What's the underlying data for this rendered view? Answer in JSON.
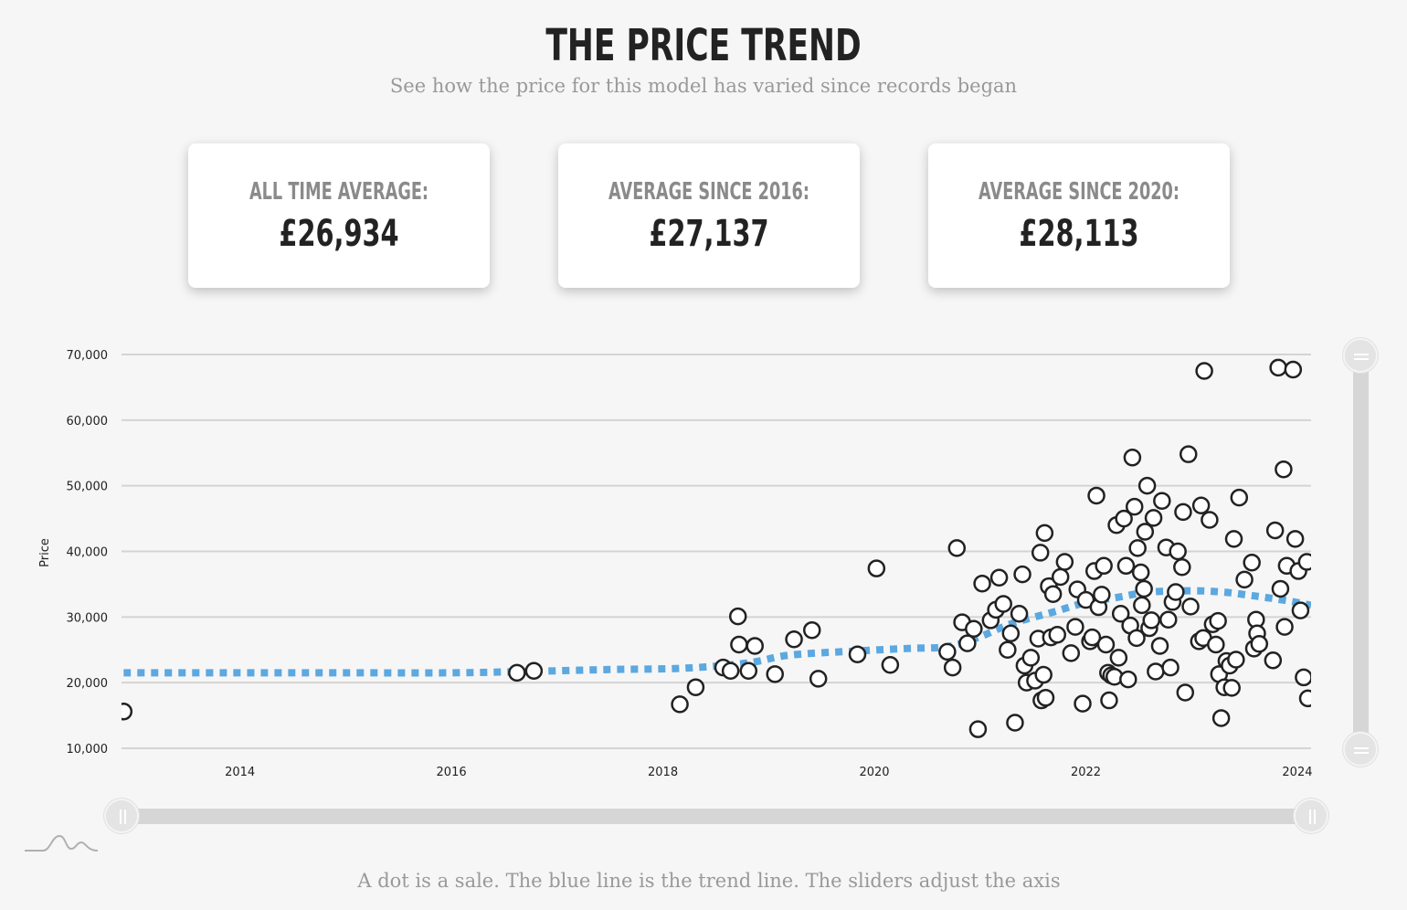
{
  "header": {
    "title": "THE PRICE TREND",
    "subtitle": "See how the price for this model has varied since records began"
  },
  "stats": [
    {
      "label": "ALL TIME AVERAGE:",
      "value": "£26,934"
    },
    {
      "label": "AVERAGE SINCE 2016:",
      "value": "£27,137"
    },
    {
      "label": "AVERAGE SINCE 2020:",
      "value": "£28,113"
    }
  ],
  "caption": "A dot is a sale. The blue line is the trend line. The sliders adjust the axis",
  "colors": {
    "trend": "#5ca8e0",
    "dot_stroke": "#222222",
    "grid": "#d4d4d4"
  },
  "logo_icon": "mountain-logo-icon",
  "chart_data": {
    "type": "scatter",
    "ylabel": "Price",
    "xlabel": "",
    "x_ticks": [
      "2014",
      "2016",
      "2018",
      "2020",
      "2022",
      "2024"
    ],
    "y_ticks": [
      "10,000",
      "20,000",
      "30,000",
      "40,000",
      "50,000",
      "60,000",
      "70,000"
    ],
    "xlim": [
      2012.88,
      2024.13
    ],
    "ylim": [
      10000,
      70000
    ],
    "grid": true,
    "trend": {
      "x": [
        2012.9,
        2014,
        2015,
        2016,
        2016.7,
        2017.5,
        2018.2,
        2018.8,
        2019.2,
        2019.8,
        2020.3,
        2020.7,
        2021.0,
        2021.3,
        2021.7,
        2022.0,
        2022.3,
        2022.6,
        2023.0,
        2023.3,
        2023.6,
        2023.9,
        2024.13
      ],
      "y": [
        21500,
        21500,
        21500,
        21500,
        21700,
        22000,
        22200,
        23000,
        24200,
        24800,
        25200,
        25500,
        27000,
        29000,
        30800,
        32200,
        33000,
        33800,
        34000,
        33800,
        33200,
        32500,
        31800
      ]
    },
    "points": [
      {
        "x": 2012.9,
        "y": 15600
      },
      {
        "x": 2016.62,
        "y": 21500
      },
      {
        "x": 2016.78,
        "y": 21800
      },
      {
        "x": 2018.16,
        "y": 16700
      },
      {
        "x": 2018.31,
        "y": 19300
      },
      {
        "x": 2018.57,
        "y": 22300
      },
      {
        "x": 2018.64,
        "y": 21800
      },
      {
        "x": 2018.71,
        "y": 30100
      },
      {
        "x": 2018.72,
        "y": 25800
      },
      {
        "x": 2018.81,
        "y": 21800
      },
      {
        "x": 2018.87,
        "y": 25600
      },
      {
        "x": 2019.06,
        "y": 21300
      },
      {
        "x": 2019.24,
        "y": 26600
      },
      {
        "x": 2019.41,
        "y": 28000
      },
      {
        "x": 2019.47,
        "y": 20600
      },
      {
        "x": 2019.84,
        "y": 24300
      },
      {
        "x": 2020.02,
        "y": 37400
      },
      {
        "x": 2020.15,
        "y": 22700
      },
      {
        "x": 2020.69,
        "y": 24700
      },
      {
        "x": 2020.74,
        "y": 22300
      },
      {
        "x": 2020.78,
        "y": 40500
      },
      {
        "x": 2020.83,
        "y": 29200
      },
      {
        "x": 2020.88,
        "y": 26000
      },
      {
        "x": 2020.94,
        "y": 28200
      },
      {
        "x": 2020.98,
        "y": 12900
      },
      {
        "x": 2021.02,
        "y": 35100
      },
      {
        "x": 2021.1,
        "y": 29500
      },
      {
        "x": 2021.15,
        "y": 31100
      },
      {
        "x": 2021.18,
        "y": 36000
      },
      {
        "x": 2021.22,
        "y": 32000
      },
      {
        "x": 2021.26,
        "y": 25000
      },
      {
        "x": 2021.29,
        "y": 27500
      },
      {
        "x": 2021.33,
        "y": 13900
      },
      {
        "x": 2021.37,
        "y": 30500
      },
      {
        "x": 2021.4,
        "y": 36500
      },
      {
        "x": 2021.42,
        "y": 22600
      },
      {
        "x": 2021.44,
        "y": 20000
      },
      {
        "x": 2021.48,
        "y": 23800
      },
      {
        "x": 2021.52,
        "y": 20300
      },
      {
        "x": 2021.55,
        "y": 26700
      },
      {
        "x": 2021.57,
        "y": 39800
      },
      {
        "x": 2021.58,
        "y": 17300
      },
      {
        "x": 2021.6,
        "y": 21200
      },
      {
        "x": 2021.61,
        "y": 42800
      },
      {
        "x": 2021.62,
        "y": 17700
      },
      {
        "x": 2021.65,
        "y": 34700
      },
      {
        "x": 2021.67,
        "y": 26900
      },
      {
        "x": 2021.69,
        "y": 33500
      },
      {
        "x": 2021.73,
        "y": 27300
      },
      {
        "x": 2021.76,
        "y": 36100
      },
      {
        "x": 2021.8,
        "y": 38400
      },
      {
        "x": 2021.86,
        "y": 24500
      },
      {
        "x": 2021.9,
        "y": 28500
      },
      {
        "x": 2021.92,
        "y": 34200
      },
      {
        "x": 2021.97,
        "y": 16800
      },
      {
        "x": 2022.0,
        "y": 32600
      },
      {
        "x": 2022.04,
        "y": 26300
      },
      {
        "x": 2022.06,
        "y": 26900
      },
      {
        "x": 2022.08,
        "y": 37000
      },
      {
        "x": 2022.1,
        "y": 48500
      },
      {
        "x": 2022.12,
        "y": 31500
      },
      {
        "x": 2022.15,
        "y": 33400
      },
      {
        "x": 2022.17,
        "y": 37800
      },
      {
        "x": 2022.19,
        "y": 25800
      },
      {
        "x": 2022.21,
        "y": 21500
      },
      {
        "x": 2022.22,
        "y": 17300
      },
      {
        "x": 2022.24,
        "y": 21100
      },
      {
        "x": 2022.27,
        "y": 20900
      },
      {
        "x": 2022.29,
        "y": 44000
      },
      {
        "x": 2022.31,
        "y": 23800
      },
      {
        "x": 2022.33,
        "y": 30500
      },
      {
        "x": 2022.36,
        "y": 45000
      },
      {
        "x": 2022.38,
        "y": 37800
      },
      {
        "x": 2022.4,
        "y": 20500
      },
      {
        "x": 2022.42,
        "y": 28700
      },
      {
        "x": 2022.44,
        "y": 54300
      },
      {
        "x": 2022.46,
        "y": 46800
      },
      {
        "x": 2022.48,
        "y": 26800
      },
      {
        "x": 2022.49,
        "y": 40500
      },
      {
        "x": 2022.52,
        "y": 36800
      },
      {
        "x": 2022.53,
        "y": 31800
      },
      {
        "x": 2022.55,
        "y": 34300
      },
      {
        "x": 2022.56,
        "y": 43000
      },
      {
        "x": 2022.58,
        "y": 50000
      },
      {
        "x": 2022.6,
        "y": 28300
      },
      {
        "x": 2022.62,
        "y": 29500
      },
      {
        "x": 2022.64,
        "y": 45100
      },
      {
        "x": 2022.66,
        "y": 21700
      },
      {
        "x": 2022.7,
        "y": 25600
      },
      {
        "x": 2022.72,
        "y": 47700
      },
      {
        "x": 2022.76,
        "y": 40600
      },
      {
        "x": 2022.78,
        "y": 29600
      },
      {
        "x": 2022.8,
        "y": 22300
      },
      {
        "x": 2022.82,
        "y": 32300
      },
      {
        "x": 2022.85,
        "y": 33800
      },
      {
        "x": 2022.87,
        "y": 40000
      },
      {
        "x": 2022.91,
        "y": 37600
      },
      {
        "x": 2022.92,
        "y": 46000
      },
      {
        "x": 2022.94,
        "y": 18500
      },
      {
        "x": 2022.97,
        "y": 54800
      },
      {
        "x": 2022.99,
        "y": 31600
      },
      {
        "x": 2023.07,
        "y": 26300
      },
      {
        "x": 2023.09,
        "y": 47000
      },
      {
        "x": 2023.11,
        "y": 26800
      },
      {
        "x": 2023.12,
        "y": 67500
      },
      {
        "x": 2023.17,
        "y": 44800
      },
      {
        "x": 2023.2,
        "y": 28900
      },
      {
        "x": 2023.23,
        "y": 25800
      },
      {
        "x": 2023.25,
        "y": 29400
      },
      {
        "x": 2023.26,
        "y": 21300
      },
      {
        "x": 2023.28,
        "y": 14600
      },
      {
        "x": 2023.31,
        "y": 19300
      },
      {
        "x": 2023.33,
        "y": 23300
      },
      {
        "x": 2023.36,
        "y": 22600
      },
      {
        "x": 2023.38,
        "y": 19200
      },
      {
        "x": 2023.4,
        "y": 41900
      },
      {
        "x": 2023.42,
        "y": 23500
      },
      {
        "x": 2023.45,
        "y": 48200
      },
      {
        "x": 2023.5,
        "y": 35700
      },
      {
        "x": 2023.57,
        "y": 38300
      },
      {
        "x": 2023.59,
        "y": 25200
      },
      {
        "x": 2023.61,
        "y": 29600
      },
      {
        "x": 2023.62,
        "y": 27500
      },
      {
        "x": 2023.64,
        "y": 25900
      },
      {
        "x": 2023.77,
        "y": 23400
      },
      {
        "x": 2023.79,
        "y": 43200
      },
      {
        "x": 2023.82,
        "y": 68000
      },
      {
        "x": 2023.84,
        "y": 34300
      },
      {
        "x": 2023.87,
        "y": 52500
      },
      {
        "x": 2023.88,
        "y": 28500
      },
      {
        "x": 2023.9,
        "y": 37800
      },
      {
        "x": 2023.96,
        "y": 67700
      },
      {
        "x": 2023.98,
        "y": 41900
      },
      {
        "x": 2024.01,
        "y": 37000
      },
      {
        "x": 2024.03,
        "y": 31000
      },
      {
        "x": 2024.06,
        "y": 20800
      },
      {
        "x": 2024.09,
        "y": 38400
      },
      {
        "x": 2024.1,
        "y": 17600
      }
    ]
  }
}
